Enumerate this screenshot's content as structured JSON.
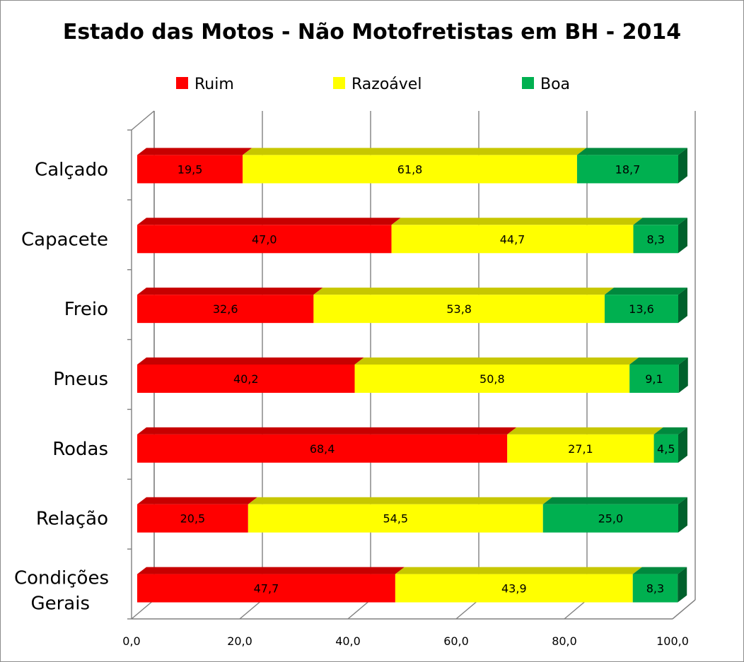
{
  "chart_data": {
    "type": "bar",
    "orientation": "horizontal",
    "stacked": true,
    "three_d": true,
    "title": "Estado das Motos - Não Motofretistas em BH - 2014",
    "legend_position": "top",
    "grid": true,
    "xlim": [
      0,
      100
    ],
    "x_ticks": [
      "0,0",
      "20,0",
      "40,0",
      "60,0",
      "80,0",
      "100,0"
    ],
    "categories": [
      [
        "Calçado"
      ],
      [
        "Capacete"
      ],
      [
        "Freio"
      ],
      [
        "Pneus"
      ],
      [
        "Rodas"
      ],
      [
        "Relação"
      ],
      [
        "Condições",
        "Gerais"
      ]
    ],
    "series": [
      {
        "name": "Ruim",
        "color": "#ff0000",
        "values": [
          19.5,
          47.0,
          32.6,
          40.2,
          68.4,
          20.5,
          47.7
        ],
        "labels": [
          "19,5",
          "47,0",
          "32,6",
          "40,2",
          "68,4",
          "20,5",
          "47,7"
        ]
      },
      {
        "name": "Razoável",
        "color": "#ffff00",
        "values": [
          61.8,
          44.7,
          53.8,
          50.8,
          27.1,
          54.5,
          43.9
        ],
        "labels": [
          "61,8",
          "44,7",
          "53,8",
          "50,8",
          "27,1",
          "54,5",
          "43,9"
        ]
      },
      {
        "name": "Boa",
        "color": "#00b050",
        "values": [
          18.7,
          8.3,
          13.6,
          9.1,
          4.5,
          25.0,
          8.3
        ],
        "labels": [
          "18,7",
          "8,3",
          "13,6",
          "9,1",
          "4,5",
          "25,0",
          "8,3"
        ]
      }
    ]
  }
}
